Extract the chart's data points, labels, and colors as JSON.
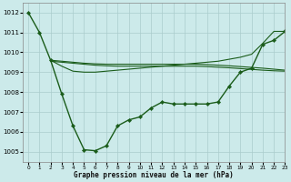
{
  "background_color": "#cceaea",
  "grid_color": "#aacccc",
  "line_color": "#1a5c1a",
  "title": "Graphe pression niveau de la mer (hPa)",
  "xlim": [
    -0.5,
    23
  ],
  "ylim": [
    1004.5,
    1012.5
  ],
  "yticks": [
    1005,
    1006,
    1007,
    1008,
    1009,
    1010,
    1011,
    1012
  ],
  "xticks": [
    0,
    1,
    2,
    3,
    4,
    5,
    6,
    7,
    8,
    9,
    10,
    11,
    12,
    13,
    14,
    15,
    16,
    17,
    18,
    19,
    20,
    21,
    22,
    23
  ],
  "line1_x": [
    0,
    1,
    2,
    3,
    4,
    5,
    6,
    7,
    8,
    9,
    10,
    11,
    12,
    13,
    14,
    15,
    16,
    17,
    18,
    19,
    20,
    21,
    22,
    23
  ],
  "line1_y": [
    1012.0,
    1011.0,
    1009.6,
    1007.9,
    1006.3,
    1005.1,
    1005.05,
    1005.3,
    1006.3,
    1006.6,
    1006.75,
    1007.2,
    1007.5,
    1007.4,
    1007.4,
    1007.4,
    1007.4,
    1007.5,
    1008.3,
    1009.0,
    1009.2,
    1010.4,
    1010.6,
    1011.05
  ],
  "line2_x": [
    2,
    3,
    4,
    5,
    6,
    7,
    8,
    9,
    10,
    11,
    12,
    13,
    14,
    15,
    16,
    17,
    18,
    19,
    20,
    21,
    22,
    23
  ],
  "line2_y": [
    1009.6,
    1009.55,
    1009.5,
    1009.45,
    1009.42,
    1009.4,
    1009.4,
    1009.4,
    1009.4,
    1009.4,
    1009.4,
    1009.4,
    1009.4,
    1009.4,
    1009.38,
    1009.35,
    1009.32,
    1009.28,
    1009.24,
    1009.2,
    1009.15,
    1009.1
  ],
  "line3_x": [
    2,
    3,
    4,
    5,
    6,
    7,
    8,
    9,
    10,
    11,
    12,
    13,
    14,
    15,
    16,
    17,
    18,
    19,
    20,
    21,
    22,
    23
  ],
  "line3_y": [
    1009.6,
    1009.3,
    1009.05,
    1009.0,
    1009.0,
    1009.05,
    1009.1,
    1009.15,
    1009.2,
    1009.25,
    1009.3,
    1009.35,
    1009.4,
    1009.45,
    1009.5,
    1009.55,
    1009.65,
    1009.75,
    1009.9,
    1010.45,
    1011.05,
    1011.05
  ],
  "line4_x": [
    2,
    3,
    4,
    5,
    6,
    7,
    8,
    9,
    10,
    11,
    12,
    13,
    14,
    15,
    16,
    17,
    18,
    19,
    20,
    21,
    22,
    23
  ],
  "line4_y": [
    1009.55,
    1009.5,
    1009.45,
    1009.4,
    1009.35,
    1009.32,
    1009.3,
    1009.3,
    1009.3,
    1009.3,
    1009.3,
    1009.3,
    1009.3,
    1009.3,
    1009.28,
    1009.25,
    1009.22,
    1009.18,
    1009.14,
    1009.1,
    1009.07,
    1009.05
  ]
}
